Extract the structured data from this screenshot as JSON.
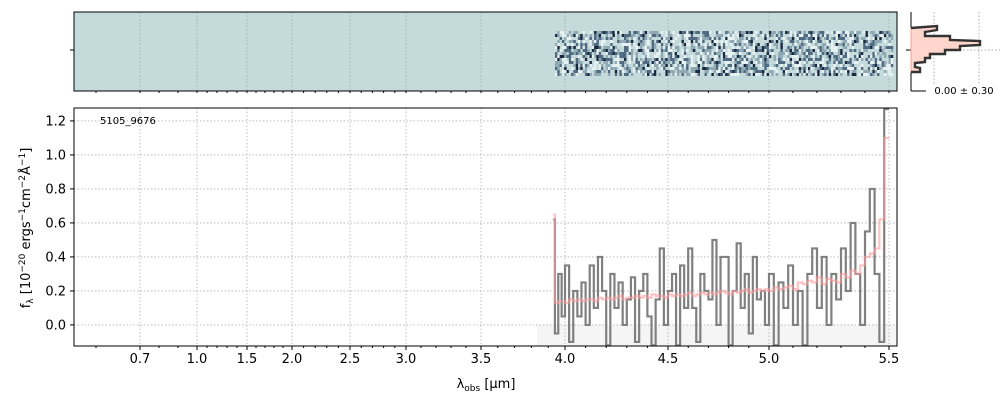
{
  "chart_data": {
    "type": "line",
    "object_label": "5105_9676",
    "xlabel": "λobs [μm]",
    "ylabel": "fλ [10^-20 ergs^-1cm^-2Å^-1]",
    "xticks": [
      "0.7",
      "1.0",
      "1.5",
      "2.0",
      "2.5",
      "3.0",
      "3.5",
      "4.0",
      "4.5",
      "5.0",
      "5.5"
    ],
    "yticks": [
      "0.0",
      "0.2",
      "0.4",
      "0.6",
      "0.8",
      "1.0",
      "1.2"
    ],
    "ylim": [
      -0.124,
      1.276
    ],
    "grid": true,
    "wave_start": 3.93,
    "wave_step": 0.02,
    "series": [
      {
        "role": "data",
        "color": "#808080",
        "values": [
          0.62,
          -0.05,
          0.3,
          0.05,
          0.35,
          -0.1,
          0.2,
          0.05,
          0.25,
          0.0,
          0.35,
          0.1,
          0.4,
          0.2,
          -0.12,
          0.3,
          0.1,
          0.25,
          0.0,
          0.15,
          0.28,
          -0.1,
          0.2,
          0.3,
          0.05,
          -0.12,
          0.15,
          0.45,
          0.0,
          0.2,
          0.3,
          -0.12,
          0.35,
          0.1,
          0.45,
          0.1,
          -0.1,
          0.3,
          0.2,
          0.15,
          0.5,
          0.0,
          0.4,
          0.4,
          -0.12,
          0.2,
          0.48,
          0.1,
          0.3,
          -0.05,
          0.4,
          0.15,
          0.2,
          0.0,
          0.3,
          -0.12,
          0.25,
          0.1,
          0.35,
          0.0,
          0.2,
          -0.12,
          0.3,
          0.45,
          0.1,
          0.4,
          0.0,
          0.3,
          0.15,
          0.45,
          0.2,
          0.6,
          0.3,
          0.0,
          0.55,
          0.8,
          0.3,
          -0.1,
          1.27
        ]
      },
      {
        "role": "model",
        "color": "#ff9a9a",
        "values": [
          0.65,
          0.13,
          0.14,
          0.14,
          0.13,
          0.15,
          0.14,
          0.15,
          0.14,
          0.15,
          0.15,
          0.14,
          0.16,
          0.15,
          0.16,
          0.15,
          0.16,
          0.17,
          0.15,
          0.16,
          0.16,
          0.17,
          0.16,
          0.17,
          0.16,
          0.18,
          0.17,
          0.17,
          0.16,
          0.18,
          0.17,
          0.18,
          0.17,
          0.18,
          0.19,
          0.17,
          0.18,
          0.19,
          0.18,
          0.19,
          0.18,
          0.19,
          0.2,
          0.19,
          0.18,
          0.2,
          0.19,
          0.2,
          0.21,
          0.19,
          0.2,
          0.21,
          0.2,
          0.21,
          0.2,
          0.22,
          0.21,
          0.22,
          0.23,
          0.21,
          0.25,
          0.24,
          0.26,
          0.25,
          0.28,
          0.24,
          0.27,
          0.26,
          0.25,
          0.3,
          0.28,
          0.32,
          0.3,
          0.35,
          0.4,
          0.42,
          0.45,
          0.62,
          1.1
        ]
      }
    ],
    "inset_label": "0.00 ± 0.30",
    "spectrum2d_background": "#c5dbdb"
  }
}
